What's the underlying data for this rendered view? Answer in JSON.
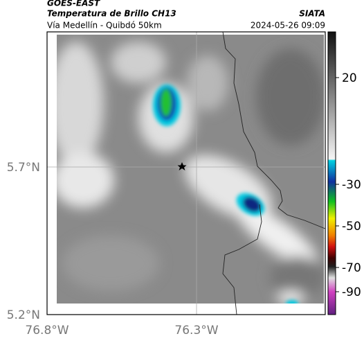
{
  "header": {
    "satellite": "GOES-EAST",
    "title": "Temperatura de Brillo CH13",
    "source": "SIATA",
    "subtitle": "Vía Medellín - Quibdó 50km",
    "datetime": "2024-05-26 09:09"
  },
  "axes": {
    "lat_labels": [
      "5.7°N",
      "5.2°N"
    ],
    "lon_labels": [
      "76.8°W",
      "76.3°W"
    ]
  },
  "colorbar": {
    "labels": [
      "20",
      "-30",
      "-50",
      "-70",
      "-90"
    ]
  }
}
